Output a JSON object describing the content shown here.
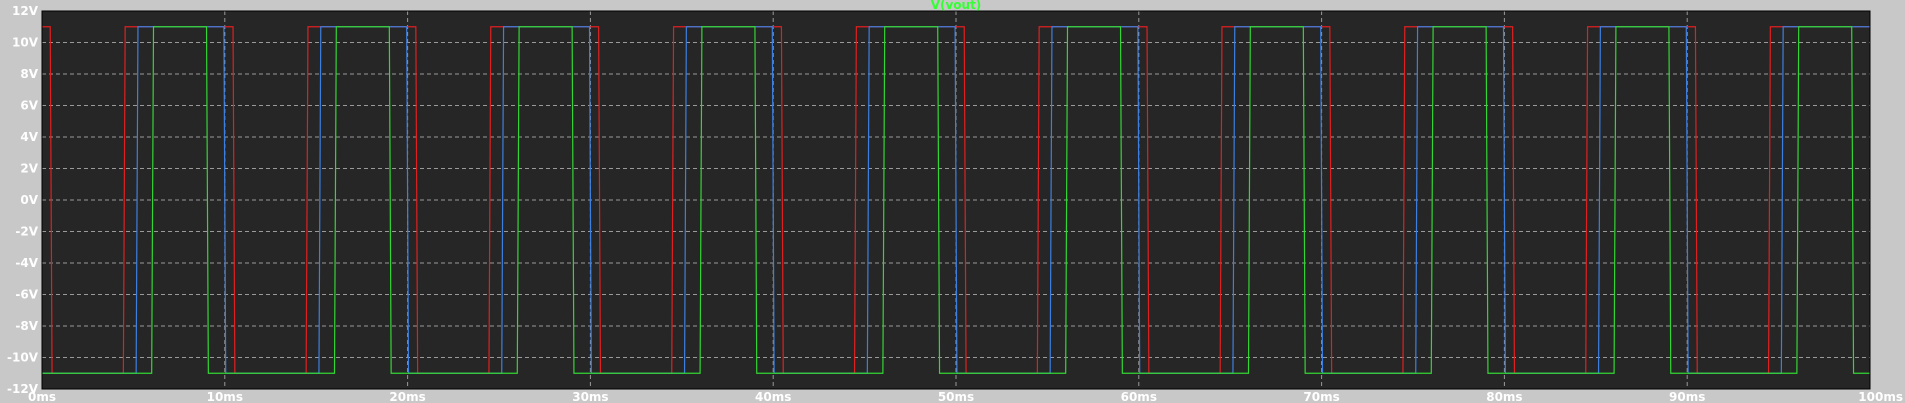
{
  "chart_data": {
    "type": "line",
    "title": "V(vout)",
    "xlabel": "",
    "ylabel": "",
    "xlim": [
      0,
      100
    ],
    "ylim": [
      -12,
      12
    ],
    "x_unit": "ms",
    "y_unit": "V",
    "grid": true,
    "x_ticks": [
      "0ms",
      "10ms",
      "20ms",
      "30ms",
      "40ms",
      "50ms",
      "60ms",
      "70ms",
      "80ms",
      "90ms",
      "100ms"
    ],
    "y_ticks": [
      "12V",
      "10V",
      "8V",
      "6V",
      "4V",
      "2V",
      "0V",
      "-2V",
      "-4V",
      "-6V",
      "-8V",
      "-10V",
      "-12V"
    ],
    "colors": {
      "background": "#262626",
      "grid": "#9a9a9a",
      "title": "#33ff33",
      "series_red": "#e02020",
      "series_blue": "#3d7fe0",
      "series_green": "#33d633"
    },
    "series": [
      {
        "color": "#e02020",
        "high": 11,
        "low": -11,
        "x": [
          0,
          0.45,
          0.55,
          4.45,
          4.55,
          10.45,
          10.55,
          14.45,
          14.55,
          20.45,
          20.55,
          24.45,
          24.55,
          30.45,
          30.55,
          34.45,
          34.55,
          40.45,
          40.55,
          44.45,
          44.55,
          50.45,
          50.55,
          54.45,
          54.55,
          60.45,
          60.55,
          64.45,
          64.55,
          70.45,
          70.55,
          74.45,
          74.55,
          80.45,
          80.55,
          84.45,
          84.55,
          90.45,
          90.55,
          94.45,
          94.55,
          100
        ],
        "y": [
          11,
          11,
          -11,
          -11,
          11,
          11,
          -11,
          -11,
          11,
          11,
          -11,
          -11,
          11,
          11,
          -11,
          -11,
          11,
          11,
          -11,
          -11,
          11,
          11,
          -11,
          -11,
          11,
          11,
          -11,
          -11,
          11,
          11,
          -11,
          -11,
          11,
          11,
          -11,
          -11,
          11,
          11,
          -11,
          -11,
          11,
          11
        ]
      },
      {
        "color": "#3d7fe0",
        "high": 11,
        "low": -11,
        "x": [
          0,
          5.15,
          5.25,
          9.95,
          10.05,
          15.15,
          15.25,
          19.95,
          20.05,
          25.15,
          25.25,
          29.95,
          30.05,
          35.15,
          35.25,
          39.95,
          40.05,
          45.15,
          45.25,
          49.95,
          50.05,
          55.15,
          55.25,
          59.95,
          60.05,
          65.15,
          65.25,
          69.95,
          70.05,
          75.15,
          75.25,
          79.95,
          80.05,
          85.15,
          85.25,
          89.95,
          90.05,
          95.15,
          95.25,
          100
        ],
        "y": [
          -11,
          -11,
          11,
          11,
          -11,
          -11,
          11,
          11,
          -11,
          -11,
          11,
          11,
          -11,
          -11,
          11,
          11,
          -11,
          -11,
          11,
          11,
          -11,
          -11,
          11,
          11,
          -11,
          -11,
          11,
          11,
          -11,
          -11,
          11,
          11,
          -11,
          -11,
          11,
          11,
          -11,
          -11,
          11,
          11
        ]
      },
      {
        "color": "#33d633",
        "high": 11,
        "low": -11,
        "x": [
          0,
          6.0,
          6.1,
          9.0,
          9.1,
          16.0,
          16.1,
          19.0,
          19.1,
          26.0,
          26.1,
          29.0,
          29.1,
          36.0,
          36.1,
          39.0,
          39.1,
          46.0,
          46.1,
          49.0,
          49.1,
          56.0,
          56.1,
          59.0,
          59.1,
          66.0,
          66.1,
          69.0,
          69.1,
          76.0,
          76.1,
          79.0,
          79.1,
          86.0,
          86.1,
          89.0,
          89.1,
          96.0,
          96.1,
          99.0,
          99.1,
          100
        ],
        "y": [
          -11,
          -11,
          11,
          11,
          -11,
          -11,
          11,
          11,
          -11,
          -11,
          11,
          11,
          -11,
          -11,
          11,
          11,
          -11,
          -11,
          11,
          11,
          -11,
          -11,
          11,
          11,
          -11,
          -11,
          11,
          11,
          -11,
          -11,
          11,
          11,
          -11,
          -11,
          11,
          11,
          -11,
          -11,
          11,
          11,
          -11,
          -11
        ]
      }
    ]
  }
}
